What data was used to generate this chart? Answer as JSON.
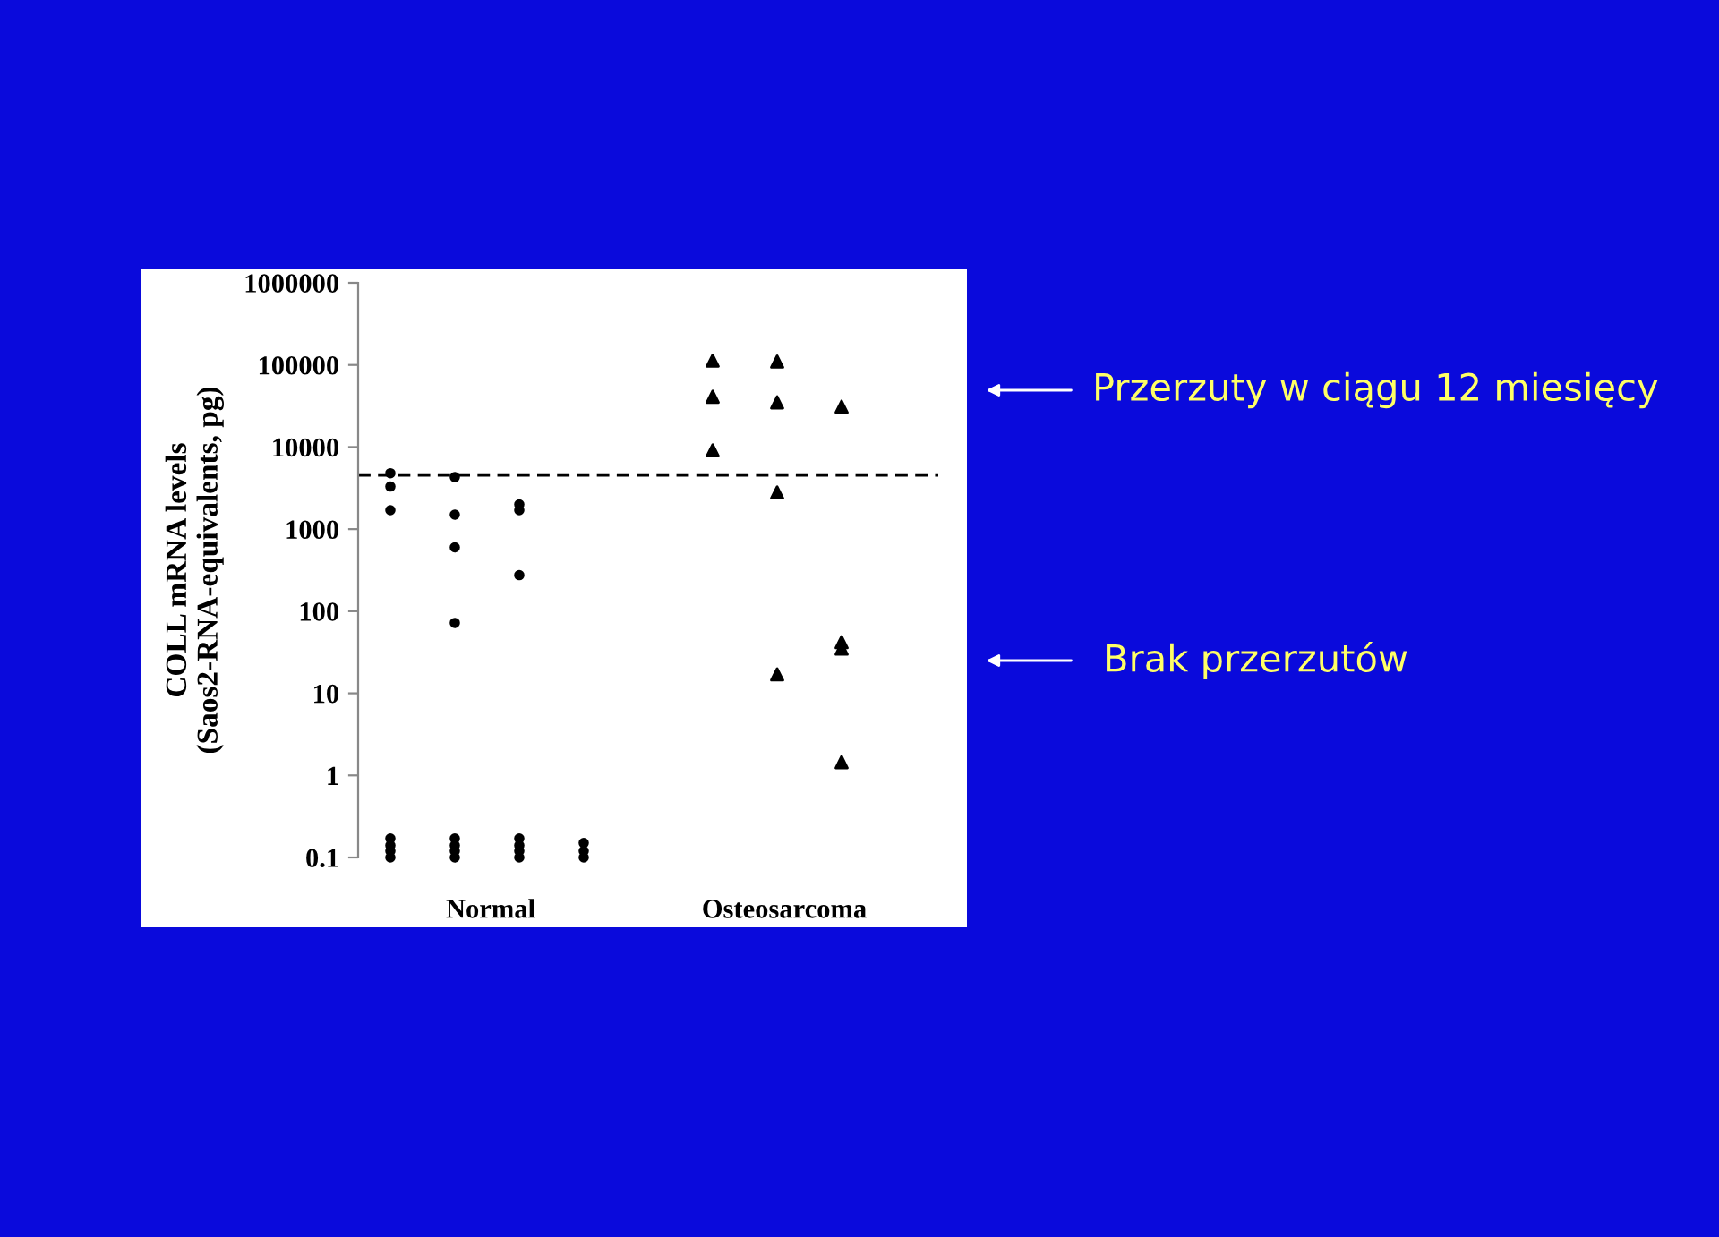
{
  "chart_data": {
    "type": "scatter",
    "ylabel": "COLL mRNA levels\n(Saos2-RNA-equivalents, pg)",
    "log": "y",
    "ylim": [
      0.1,
      1000000
    ],
    "yticks": [
      0.1,
      1,
      10,
      100,
      1000,
      10000,
      100000,
      1000000
    ],
    "categories": [
      null,
      null,
      null,
      null,
      null,
      null,
      null,
      null,
      null
    ],
    "grid": false,
    "series": [
      {
        "color": "#000000",
        "marker": "circle",
        "values": [
          4800,
          4300,
          2000,
          0.1,
          null,
          null,
          null,
          null,
          null
        ]
      },
      {
        "color": "#000000",
        "marker": "circle",
        "values": [
          3300,
          1500,
          1700,
          0.12,
          null,
          null,
          null,
          null,
          null
        ]
      },
      {
        "color": "#000000",
        "marker": "circle",
        "values": [
          1700,
          600,
          275,
          0.15,
          null,
          null,
          null,
          null,
          null
        ]
      },
      {
        "color": "#000000",
        "marker": "circle",
        "values": [
          0.1,
          72,
          0.1,
          null,
          null,
          null,
          null,
          null,
          null
        ]
      },
      {
        "color": "#000000",
        "marker": "circle",
        "values": [
          0.12,
          0.1,
          0.12,
          null,
          null,
          null,
          null,
          null,
          null
        ]
      },
      {
        "color": "#000000",
        "marker": "circle",
        "values": [
          0.14,
          0.12,
          0.14,
          null,
          null,
          null,
          null,
          null,
          null
        ]
      },
      {
        "color": "#000000",
        "marker": "circle",
        "values": [
          0.17,
          0.14,
          0.17,
          null,
          null,
          null,
          null,
          null,
          null
        ]
      },
      {
        "color": "#000000",
        "marker": "circle",
        "values": [
          null,
          0.17,
          null,
          null,
          null,
          null,
          null,
          null,
          null
        ]
      },
      {
        "color": "#000000",
        "marker": "triangle",
        "values": [
          null,
          null,
          null,
          null,
          null,
          113000,
          110000,
          31000,
          null
        ]
      },
      {
        "color": "#000000",
        "marker": "triangle",
        "values": [
          null,
          null,
          null,
          null,
          null,
          41000,
          35000,
          42,
          null
        ]
      },
      {
        "color": "#000000",
        "marker": "triangle",
        "values": [
          null,
          null,
          null,
          null,
          null,
          9100,
          2800,
          35,
          null
        ]
      },
      {
        "color": "#000000",
        "marker": "triangle",
        "values": [
          null,
          null,
          null,
          null,
          null,
          null,
          17,
          1.45,
          null
        ]
      }
    ],
    "ref_lines": [
      {
        "axis": "y",
        "value": 4500,
        "color": "#000000",
        "line_style": "dashed"
      }
    ],
    "annotations": [
      "Normal",
      "Osteosarcoma",
      "Przerzuty w ciągu 12 miesięcy",
      "Brak przerzutów"
    ]
  }
}
